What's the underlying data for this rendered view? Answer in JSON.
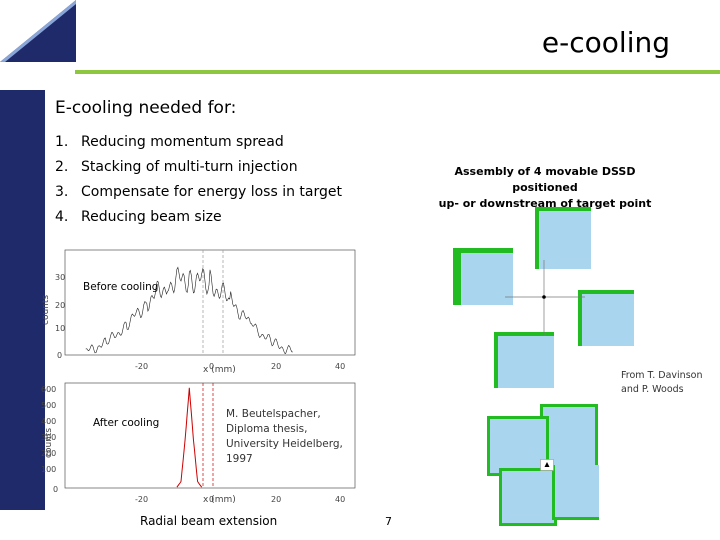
{
  "title": "e-cooling",
  "heading": "E-cooling needed for:",
  "list": [
    {
      "num": "1.",
      "text": "Reducing momentum spread"
    },
    {
      "num": "2.",
      "text": "Stacking of multi-turn injection"
    },
    {
      "num": "3.",
      "text": "Compensate for energy loss in target"
    },
    {
      "num": "4.",
      "text": "Reducing beam size"
    }
  ],
  "assembly_caption": [
    "Assembly of 4 movable DSSD positioned",
    "up- or downstream of target point"
  ],
  "credit_davinson": [
    "From T. Davinson",
    "and P. Woods"
  ],
  "plot_before": {
    "label": "Before cooling",
    "ylabel": "counts",
    "xlabel": "x (mm)",
    "yticks": [
      "30",
      "20",
      "10",
      "0"
    ],
    "xticks": [
      "-20",
      "0",
      "20",
      "40"
    ]
  },
  "plot_after": {
    "label": "After cooling",
    "ylabel": "counts",
    "xlabel": "x (mm)",
    "yticks": [
      "600",
      "500",
      "400",
      "300",
      "200",
      "100",
      "0"
    ],
    "xticks": [
      "-20",
      "0",
      "20",
      "40"
    ]
  },
  "beutelspacher_credit": [
    "M. Beutelspacher,",
    "Diploma thesis,",
    "University Heidelberg,",
    "1997"
  ],
  "radial_caption": "Radial beam extension",
  "page_number": "7",
  "colors": {
    "accent_green": "#8dc63f",
    "brand_navy": "#1f2a6b",
    "detector_blue": "#a9d5ef",
    "detector_green": "#22bb22",
    "peak_red": "#cc0000"
  },
  "chart_data": [
    {
      "type": "line",
      "title": "Before cooling",
      "xlabel": "x (mm)",
      "ylabel": "counts",
      "xlim": [
        -30,
        40
      ],
      "ylim": [
        0,
        35
      ],
      "series": [
        {
          "x": [
            -25,
            -20,
            -15,
            -10,
            -5,
            0,
            5,
            10,
            15,
            20,
            25
          ],
          "values": [
            1,
            4,
            10,
            18,
            24,
            26,
            24,
            18,
            10,
            4,
            1
          ]
        }
      ]
    },
    {
      "type": "line",
      "title": "After cooling",
      "xlabel": "x (mm)",
      "ylabel": "counts",
      "xlim": [
        -30,
        40
      ],
      "ylim": [
        0,
        650
      ],
      "series": [
        {
          "x": [
            -3,
            -2,
            -1,
            0,
            1,
            2,
            3
          ],
          "values": [
            5,
            40,
            300,
            620,
            300,
            40,
            5
          ]
        }
      ]
    }
  ]
}
